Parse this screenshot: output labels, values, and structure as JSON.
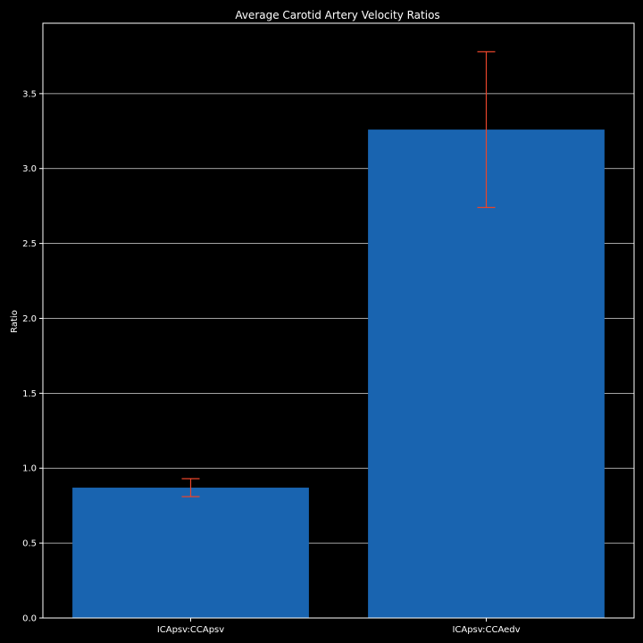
{
  "chart_data": {
    "type": "bar",
    "title": "Average Carotid Artery Velocity Ratios",
    "xlabel": "",
    "ylabel": "Ratio",
    "categories": [
      "ICApsv:CCApsv",
      "ICApsv:CCAedv"
    ],
    "values": [
      0.87,
      3.26
    ],
    "error": [
      0.06,
      0.52
    ],
    "ylim": [
      0,
      3.97
    ],
    "yticks": [
      0.0,
      0.5,
      1.0,
      1.5,
      2.0,
      2.5,
      3.0,
      3.5
    ],
    "ytick_labels": [
      "0.0",
      "0.5",
      "1.0",
      "1.5",
      "2.0",
      "2.5",
      "3.0",
      "3.5"
    ],
    "grid": "y",
    "colors": {
      "background": "#000000",
      "bar": "#1964b0",
      "error_bar": "#e8452b",
      "grid": "#ffffff",
      "axis": "#ffffff",
      "text": "#ffffff"
    }
  }
}
